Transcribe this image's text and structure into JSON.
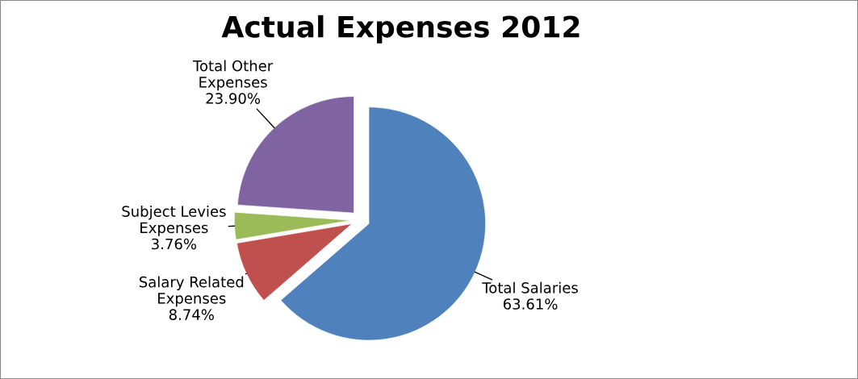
{
  "chart_data": {
    "type": "pie",
    "title": "Actual Expenses 2012",
    "categories": [
      "Total Salaries",
      "Salary Related\nExpenses",
      "Subject Levies\nExpenses",
      "Total Other\nExpenses"
    ],
    "values": [
      63.61,
      8.74,
      3.76,
      23.9
    ],
    "value_labels": [
      "63.61%",
      "8.74%",
      "3.76%",
      "23.90%"
    ],
    "colors": [
      "#4f81bd",
      "#c0504d",
      "#9bbb59",
      "#8064a2"
    ],
    "legend": false
  }
}
